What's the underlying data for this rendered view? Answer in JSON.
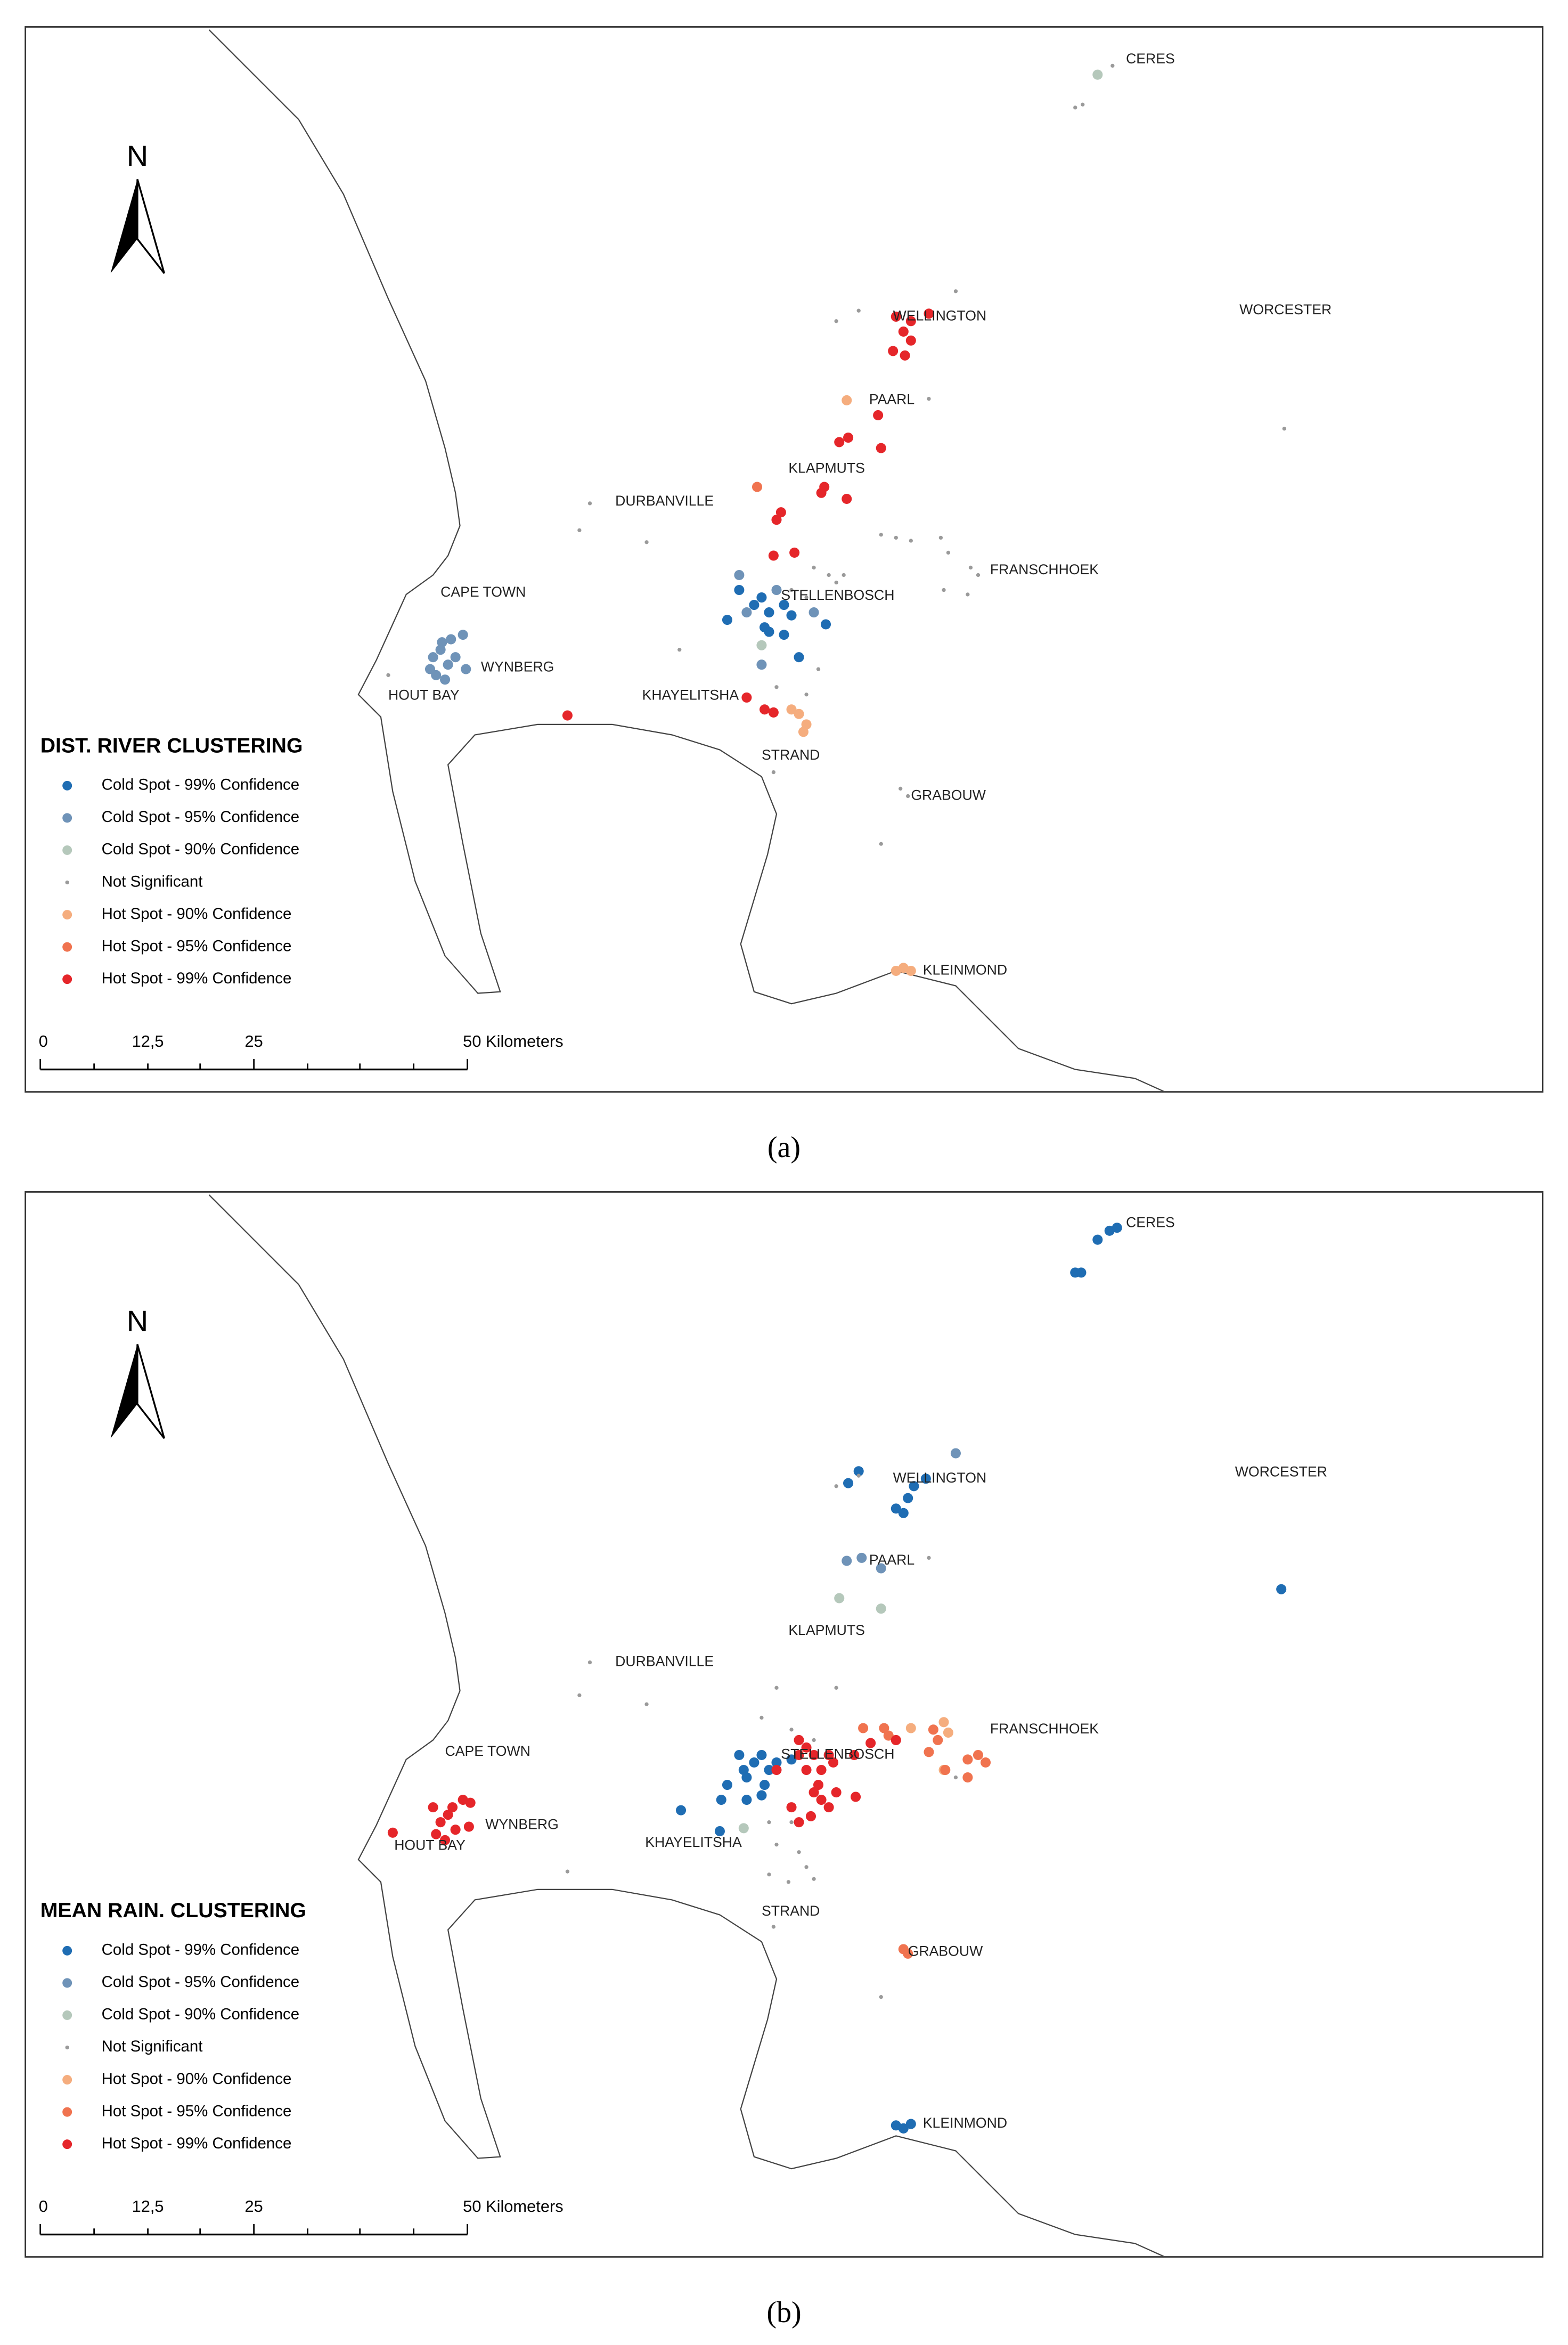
{
  "panels": [
    {
      "title": "DIST. RIVER CLUSTERING",
      "caption": "(a)",
      "north": "N",
      "legend": [
        {
          "label": "Cold Spot - 99% Confidence",
          "color": "#1f6db3"
        },
        {
          "label": "Cold Spot - 95% Confidence",
          "color": "#6f93b8"
        },
        {
          "label": "Cold Spot - 90% Confidence",
          "color": "#b5c8bb"
        },
        {
          "label": "Not Significant",
          "color": "#9a9a9a"
        },
        {
          "label": "Hot Spot - 90% Confidence",
          "color": "#f5ad7e"
        },
        {
          "label": "Hot Spot - 95% Confidence",
          "color": "#f0734f"
        },
        {
          "label": "Hot Spot - 99% Confidence",
          "color": "#e5262a"
        }
      ],
      "places": [
        "CERES",
        "WELLINGTON",
        "WORCESTER",
        "PAARL",
        "KLAPMUTS",
        "DURBANVILLE",
        "FRANSCHHOEK",
        "CAPE TOWN",
        "STELLENBOSCH",
        "WYNBERG",
        "HOUT BAY",
        "KHAYELITSHA",
        "STRAND",
        "GRABOUW",
        "KLEINMOND"
      ],
      "scale_labels": [
        "0",
        "12,5",
        "25",
        "50 Kilometers"
      ]
    },
    {
      "title": "MEAN RAIN. CLUSTERING",
      "caption": "(b)",
      "north": "N",
      "legend": [
        {
          "label": "Cold Spot - 99% Confidence",
          "color": "#1f6db3"
        },
        {
          "label": "Cold Spot - 95% Confidence",
          "color": "#6f93b8"
        },
        {
          "label": "Cold Spot - 90% Confidence",
          "color": "#b5c8bb"
        },
        {
          "label": "Not Significant",
          "color": "#9a9a9a"
        },
        {
          "label": "Hot Spot - 90% Confidence",
          "color": "#f5ad7e"
        },
        {
          "label": "Hot Spot - 95% Confidence",
          "color": "#f0734f"
        },
        {
          "label": "Hot Spot - 99% Confidence",
          "color": "#e5262a"
        }
      ],
      "places": [
        "CERES",
        "WELLINGTON",
        "WORCESTER",
        "PAARL",
        "KLAPMUTS",
        "DURBANVILLE",
        "FRANSCHHOEK",
        "CAPE TOWN",
        "STELLENBOSCH",
        "WYNBERG",
        "HOUT BAY",
        "KHAYELITSHA",
        "STRAND",
        "GRABOUW",
        "KLEINMOND"
      ],
      "scale_labels": [
        "0",
        "12,5",
        "25",
        "50 Kilometers"
      ]
    }
  ]
}
